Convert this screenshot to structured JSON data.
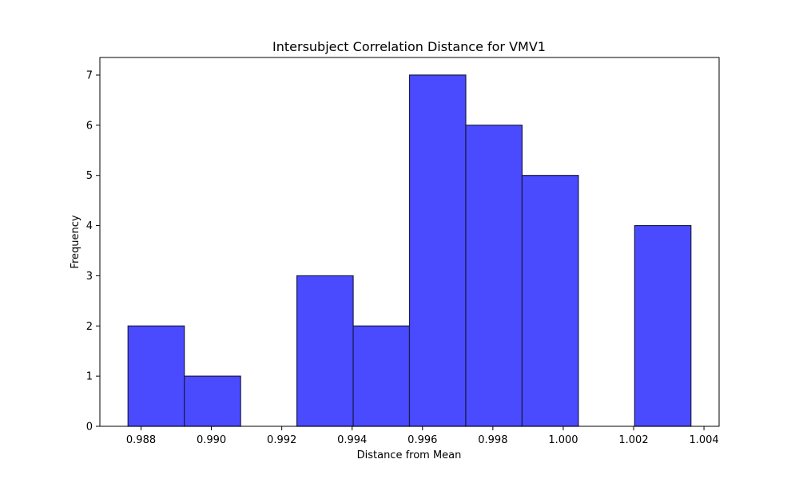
{
  "chart_data": {
    "type": "bar",
    "title": "Intersubject Correlation Distance for VMV1",
    "xlabel": "Distance from Mean",
    "ylabel": "Frequency",
    "bin_edges": [
      0.98763,
      0.98923,
      0.99083,
      0.99243,
      0.99403,
      0.99563,
      0.99723,
      0.99883,
      1.00043,
      1.00203,
      1.00363
    ],
    "values": [
      2,
      1,
      0,
      3,
      2,
      7,
      6,
      5,
      0,
      4
    ],
    "xlim": [
      0.98683,
      1.00443
    ],
    "ylim": [
      0,
      7.35
    ],
    "xticks": [
      0.988,
      0.99,
      0.992,
      0.994,
      0.996,
      0.998,
      1.0,
      1.002,
      1.004
    ],
    "xtick_labels": [
      "0.988",
      "0.990",
      "0.992",
      "0.994",
      "0.996",
      "0.998",
      "1.000",
      "1.002",
      "1.004"
    ],
    "yticks": [
      0,
      1,
      2,
      3,
      4,
      5,
      6,
      7
    ],
    "ytick_labels": [
      "0",
      "1",
      "2",
      "3",
      "4",
      "5",
      "6",
      "7"
    ],
    "grid": false,
    "bar_color": "#4a4aff",
    "edge_color": "#1a1a4a"
  }
}
